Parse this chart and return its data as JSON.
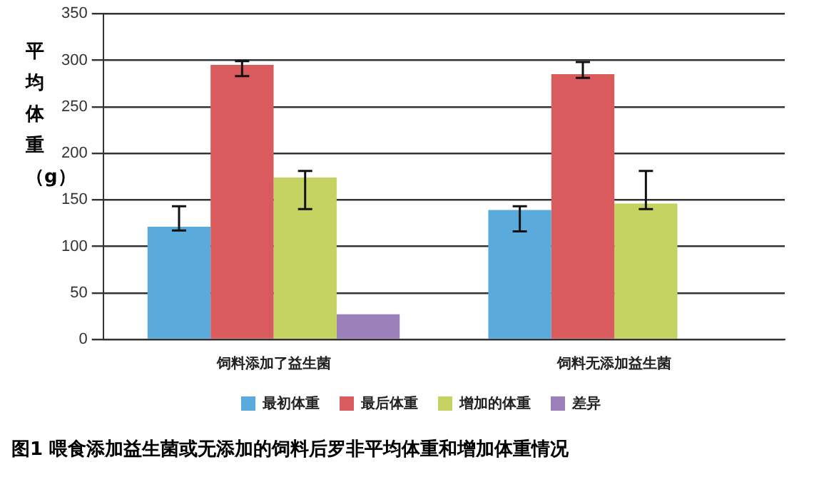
{
  "chart_data": {
    "type": "bar",
    "title": "图1 喂食添加益生菌或无添加的饲料后罗非平均体重和增加体重情况",
    "ylabel": "平均体重（g）",
    "categories": [
      "饲料添加了益生菌",
      "饲料无添加益生菌"
    ],
    "series": [
      {
        "name": "最初体重",
        "color": "#5aaadc",
        "values": [
          121,
          139
        ],
        "errors": [
          [
            117,
            143
          ],
          [
            116,
            143
          ]
        ]
      },
      {
        "name": "最后体重",
        "color": "#d95b5e",
        "values": [
          295,
          285
        ],
        "errors": [
          [
            283,
            299
          ],
          [
            281,
            298
          ]
        ]
      },
      {
        "name": "增加的体重",
        "color": "#c5d362",
        "values": [
          174,
          146
        ],
        "errors": [
          [
            140,
            181
          ],
          [
            140,
            181
          ]
        ]
      },
      {
        "name": "差异",
        "color": "#9c80ba",
        "values": [
          27,
          null
        ]
      }
    ],
    "ylim": [
      0,
      350
    ],
    "yticks": [
      0,
      50,
      100,
      150,
      200,
      250,
      300,
      350
    ],
    "grid": "y",
    "legend": "bottom"
  }
}
